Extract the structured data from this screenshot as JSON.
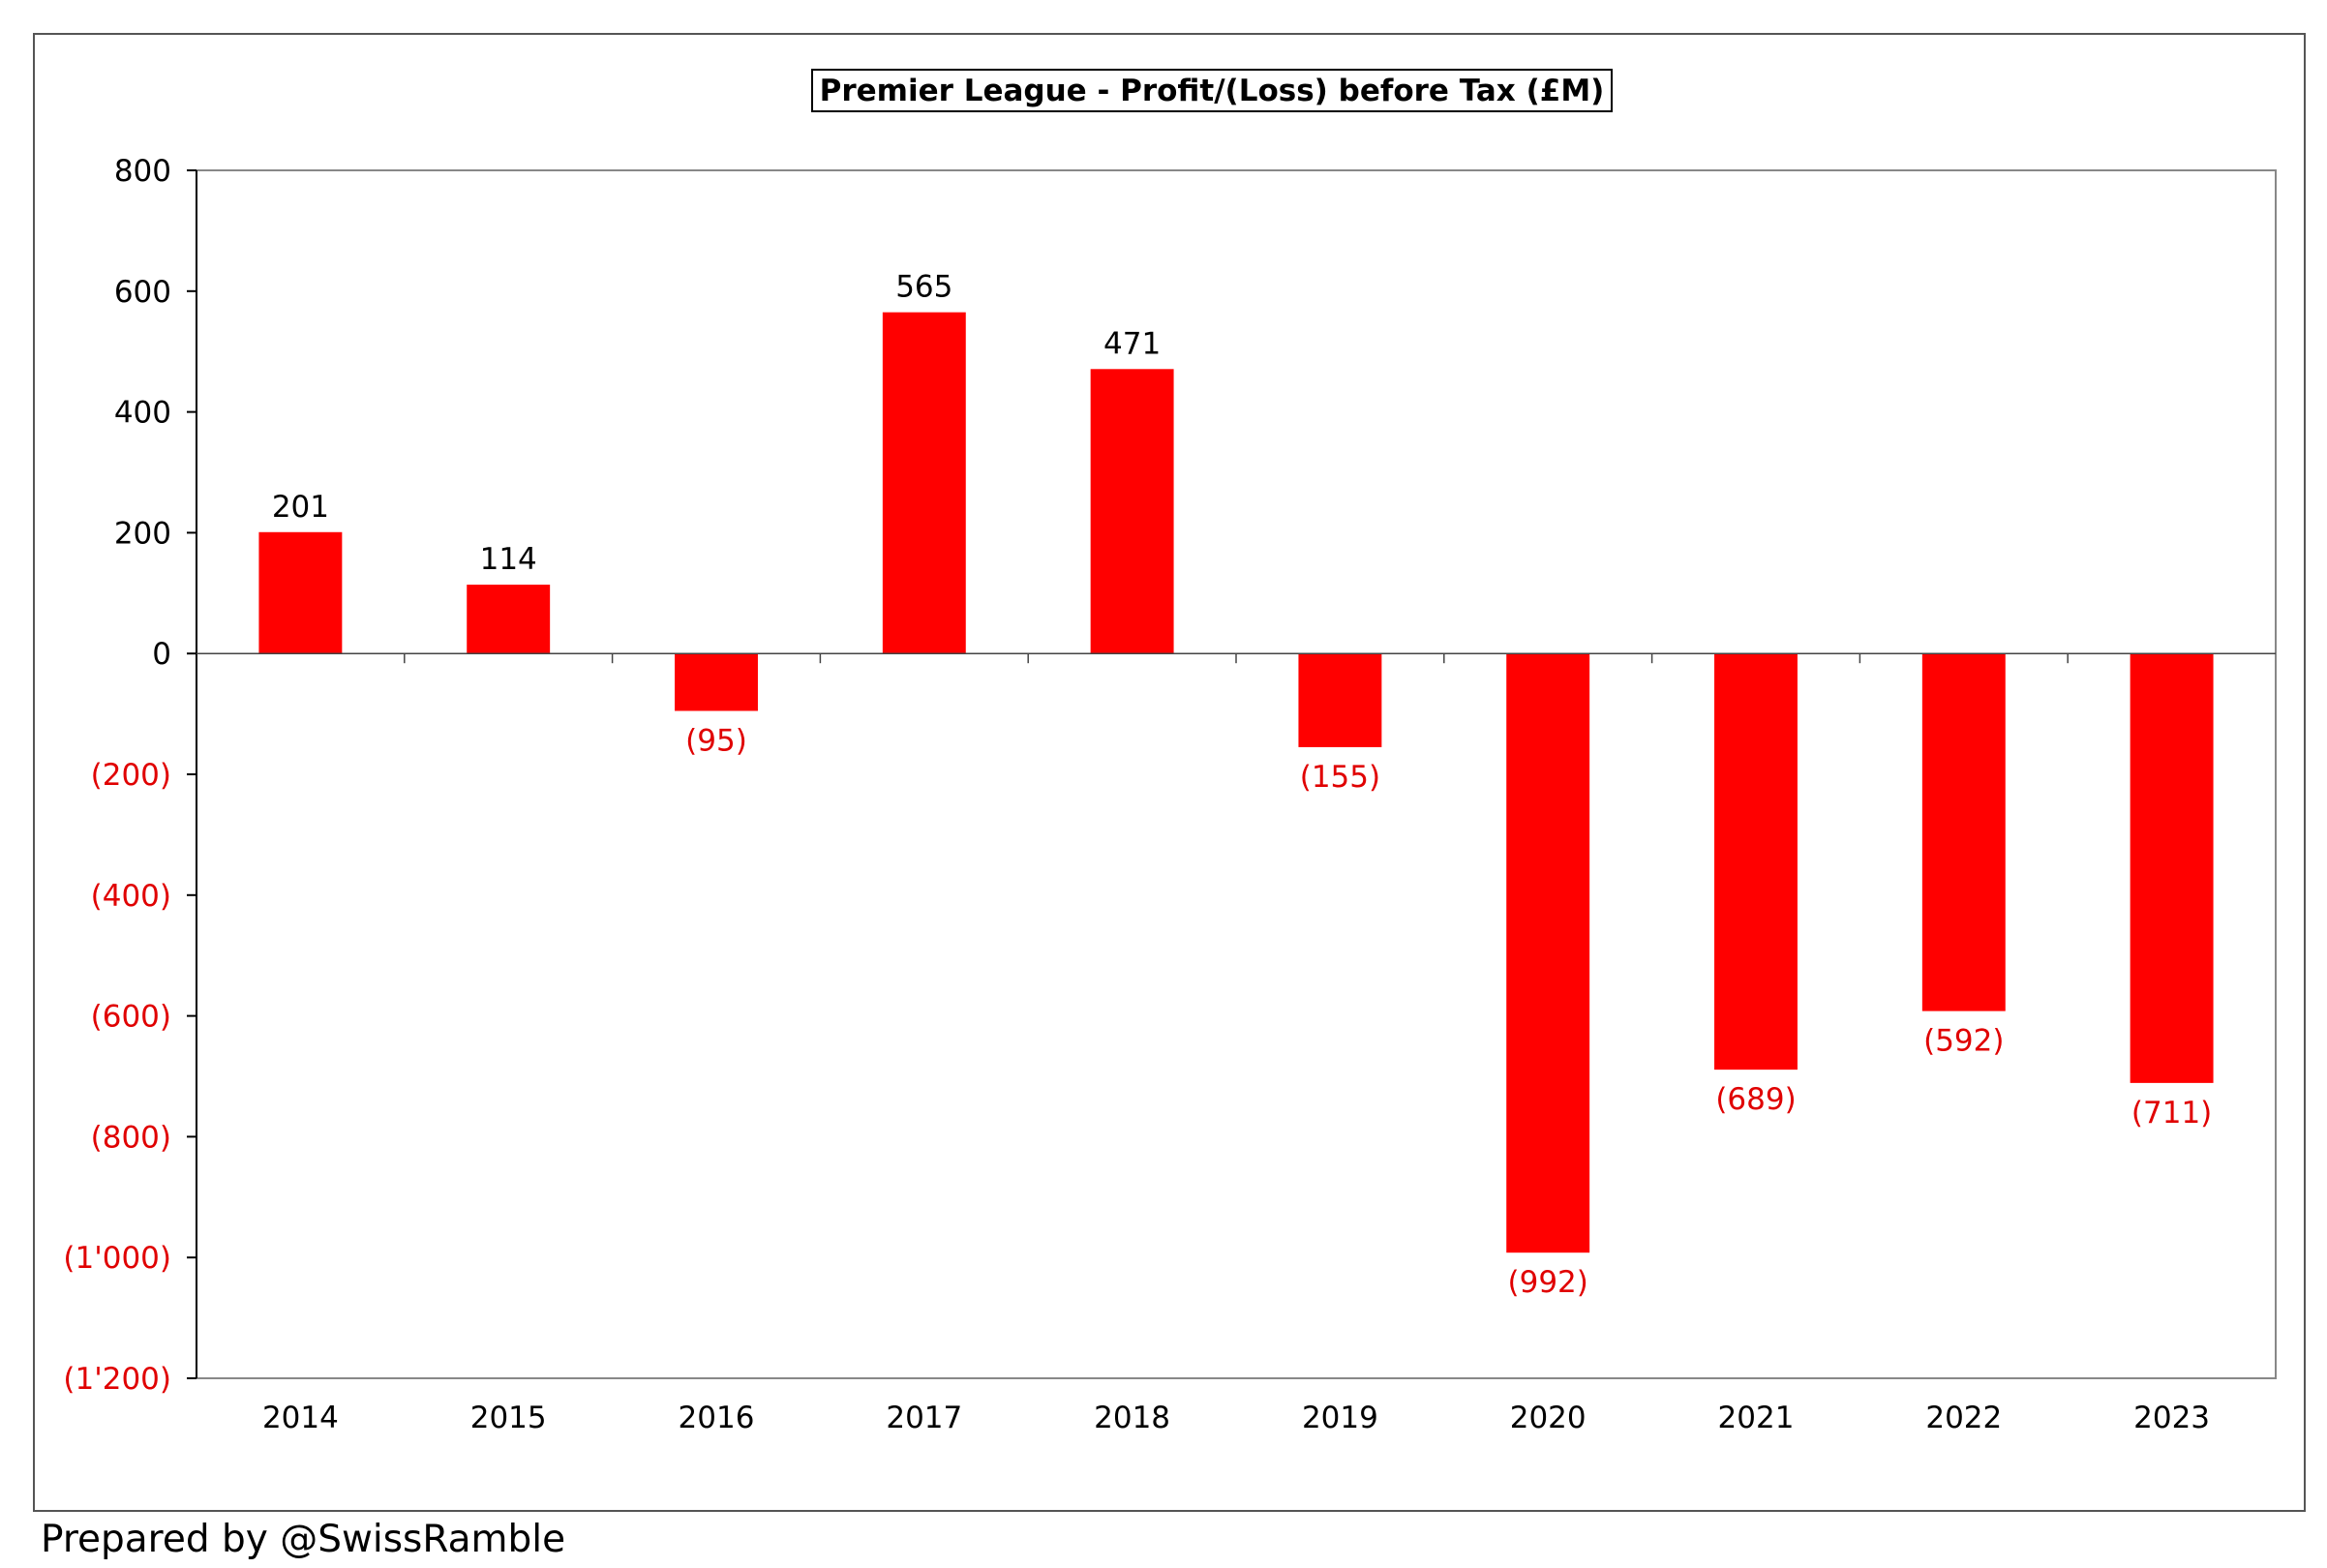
{
  "colors": {
    "bar": "#ff0000",
    "negative_text": "#e00000",
    "positive_text": "#000000"
  },
  "footer": {
    "credit": "Prepared by @SwissRamble"
  },
  "chart_data": {
    "type": "bar",
    "title": "Premier League - Profit/(Loss) before Tax (£M)",
    "xlabel": "",
    "ylabel": "",
    "categories": [
      "2014",
      "2015",
      "2016",
      "2017",
      "2018",
      "2019",
      "2020",
      "2021",
      "2022",
      "2023"
    ],
    "values": [
      201,
      114,
      -95,
      565,
      471,
      -155,
      -992,
      -689,
      -592,
      -711
    ],
    "data_labels": [
      "201",
      "114",
      "(95)",
      "565",
      "471",
      "(155)",
      "(992)",
      "(689)",
      "(592)",
      "(711)"
    ],
    "ylim": [
      -1200,
      800
    ],
    "y_ticks": [
      800,
      600,
      400,
      200,
      0,
      -200,
      -400,
      -600,
      -800,
      -1000,
      -1200
    ],
    "y_tick_labels": [
      "800",
      "600",
      "400",
      "200",
      "0",
      "(200)",
      "(400)",
      "(600)",
      "(800)",
      "(1'000)",
      "(1'200)"
    ],
    "grid": false,
    "legend": "none"
  }
}
